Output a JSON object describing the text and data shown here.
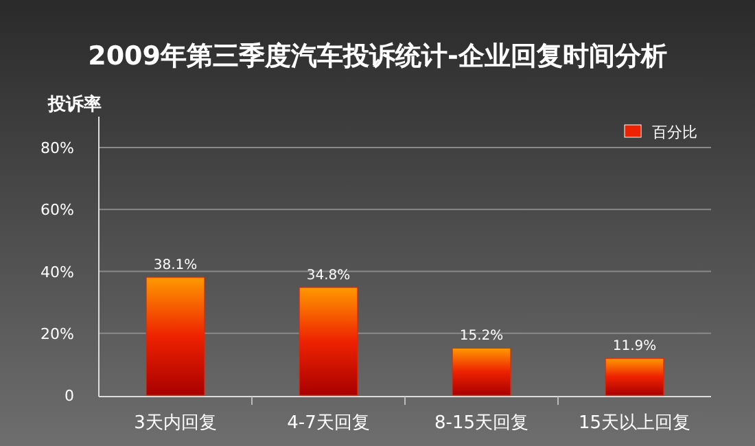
{
  "chart_data": {
    "type": "bar",
    "title": "2009年第三季度汽车投诉统计-企业回复时间分析",
    "ylabel": "投诉率",
    "categories": [
      "3天内回复",
      "4-7天回复",
      "8-15天回复",
      "15天以上回复"
    ],
    "series": [
      {
        "name": "百分比",
        "color": "#ee2200",
        "values": [
          38.1,
          34.8,
          15.2,
          11.9
        ],
        "value_labels": [
          "38.1%",
          "34.8%",
          "15.2%",
          "11.9%"
        ]
      }
    ],
    "ylim": [
      0,
      90
    ],
    "yticks": [
      0,
      {
        "value": 20,
        "label": "20%"
      },
      {
        "value": 40,
        "label": "40%"
      },
      {
        "value": 60,
        "label": "60%"
      },
      {
        "value": 80,
        "label": "80%"
      }
    ],
    "grid": "y",
    "legend": "top right"
  }
}
